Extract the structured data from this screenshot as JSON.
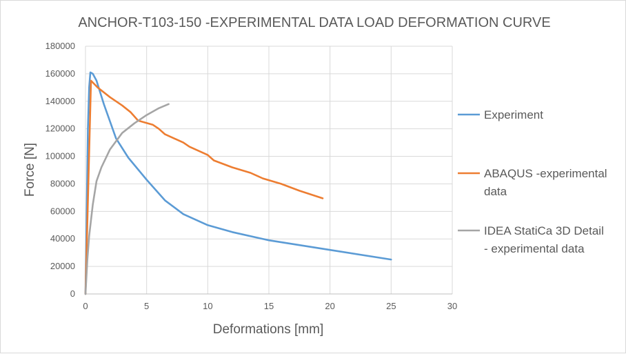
{
  "chart_data": {
    "type": "line",
    "title": "ANCHOR-T103-150 -EXPERIMENTAL DATA LOAD DEFORMATION CURVE",
    "xlabel": "Deformations [mm]",
    "ylabel": "Force [N]",
    "xlim": [
      0,
      30
    ],
    "ylim": [
      0,
      180000
    ],
    "xticks": [
      0,
      5,
      10,
      15,
      20,
      25,
      30
    ],
    "yticks": [
      0,
      20000,
      40000,
      60000,
      80000,
      100000,
      120000,
      140000,
      160000,
      180000
    ],
    "grid": true,
    "legend_position": "right",
    "series": [
      {
        "name": "Experiment",
        "legend_lines": [
          "Experiment"
        ],
        "color": "#5b9bd5",
        "x": [
          0,
          0.1,
          0.2,
          0.3,
          0.4,
          0.6,
          0.9,
          1.5,
          2.5,
          3.5,
          5,
          6.5,
          8,
          10,
          12,
          15,
          20,
          25
        ],
        "y": [
          0,
          60000,
          120000,
          150000,
          161000,
          160000,
          155000,
          138000,
          113000,
          99000,
          83000,
          68000,
          58000,
          50000,
          45000,
          39000,
          32000,
          25000
        ]
      },
      {
        "name": "ABAQUS -experimental data",
        "legend_lines": [
          "ABAQUS -experimental",
          "data"
        ],
        "color": "#ed7d31",
        "x": [
          0,
          0.45,
          1,
          2,
          3,
          3.7,
          4.3,
          5.5,
          6,
          6.5,
          8,
          8.5,
          10,
          10.5,
          12,
          13.5,
          14.5,
          16,
          17.5,
          19.4
        ],
        "y": [
          0,
          155000,
          150000,
          143000,
          137000,
          132000,
          126000,
          123000,
          120000,
          116000,
          110000,
          107000,
          101000,
          97000,
          92000,
          88000,
          84000,
          80000,
          75000,
          69500
        ]
      },
      {
        "name": "IDEA StatiCa 3D Detail - experimental data",
        "legend_lines": [
          "IDEA StatiCa 3D Detail",
          "- experimental data"
        ],
        "color": "#a5a5a5",
        "x": [
          0,
          0.15,
          0.3,
          0.6,
          0.9,
          1.3,
          2,
          3,
          4,
          5,
          6,
          6.8
        ],
        "y": [
          0,
          25000,
          42000,
          65000,
          82000,
          92000,
          105000,
          117000,
          124000,
          130000,
          135000,
          138000
        ]
      }
    ]
  }
}
